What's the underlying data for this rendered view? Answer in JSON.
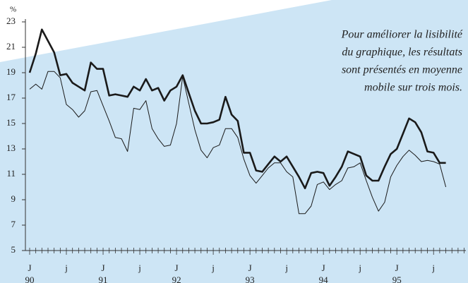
{
  "chart_data": {
    "type": "line",
    "y_unit_label": "%",
    "annotation": [
      "Pour améliorer la lisibilité",
      "du graphique, les résultats",
      "sont présentés en moyenne",
      "mobile sur trois mois."
    ],
    "categories": [
      "J",
      null,
      null,
      null,
      null,
      null,
      "j",
      null,
      null,
      null,
      null,
      null,
      "J",
      null,
      null,
      null,
      null,
      null,
      "j",
      null,
      null,
      null,
      null,
      null,
      "J",
      null,
      null,
      null,
      null,
      null,
      "j",
      null,
      null,
      null,
      null,
      null,
      "J",
      null,
      null,
      null,
      null,
      null,
      "j",
      null,
      null,
      null,
      null,
      null,
      "J",
      null,
      null,
      null,
      null,
      null,
      "j",
      null,
      null,
      null,
      null,
      null,
      "J",
      null,
      null,
      null,
      null,
      null,
      "j",
      null,
      null,
      null,
      null,
      null
    ],
    "year_labels": [
      "90",
      "91",
      "92",
      "93",
      "94",
      "95"
    ],
    "ylim": [
      5,
      23
    ],
    "yticks": [
      5,
      7,
      9,
      11,
      13,
      15,
      17,
      19,
      21,
      23
    ],
    "series": [
      {
        "color": "#1a1a1a",
        "values": [
          19.0,
          20.5,
          22.4,
          21.5,
          20.6,
          18.8,
          18.9,
          18.2,
          17.9,
          17.6,
          19.8,
          19.3,
          19.3,
          17.2,
          17.3,
          17.2,
          17.1,
          17.9,
          17.6,
          18.5,
          17.6,
          17.8,
          16.8,
          17.6,
          17.9,
          18.8,
          17.4,
          16.0,
          15.0,
          15.0,
          15.1,
          15.3,
          17.1,
          15.7,
          15.2,
          12.7,
          12.7,
          11.3,
          11.2,
          11.8,
          12.4,
          12.0,
          12.4,
          11.6,
          10.8,
          9.9,
          11.1,
          11.2,
          11.1,
          10.1,
          10.8,
          11.6,
          12.8,
          12.6,
          12.4,
          10.9,
          10.5,
          10.5,
          11.6,
          12.6,
          13.0,
          14.2,
          15.4,
          15.1,
          14.3,
          12.8,
          12.7,
          11.9,
          11.9,
          null,
          null,
          null
        ]
      },
      {
        "color": "#1a1a1a",
        "values": [
          17.7,
          18.1,
          17.7,
          19.1,
          19.1,
          18.6,
          16.5,
          16.1,
          15.5,
          16.0,
          17.5,
          17.6,
          16.4,
          15.2,
          13.9,
          13.8,
          12.8,
          16.2,
          16.1,
          16.8,
          14.6,
          13.8,
          13.2,
          13.3,
          15.0,
          18.7,
          16.6,
          14.5,
          12.9,
          12.3,
          13.1,
          13.3,
          14.6,
          14.6,
          13.9,
          12.2,
          10.9,
          10.3,
          10.9,
          11.5,
          11.9,
          11.9,
          11.2,
          10.8,
          7.9,
          7.9,
          8.5,
          10.2,
          10.4,
          9.8,
          10.2,
          10.5,
          11.5,
          11.6,
          11.9,
          10.5,
          9.2,
          8.1,
          8.8,
          10.8,
          11.7,
          12.4,
          12.9,
          12.5,
          12.0,
          12.1,
          12.0,
          11.8,
          10.0,
          null,
          null,
          null
        ]
      }
    ]
  }
}
